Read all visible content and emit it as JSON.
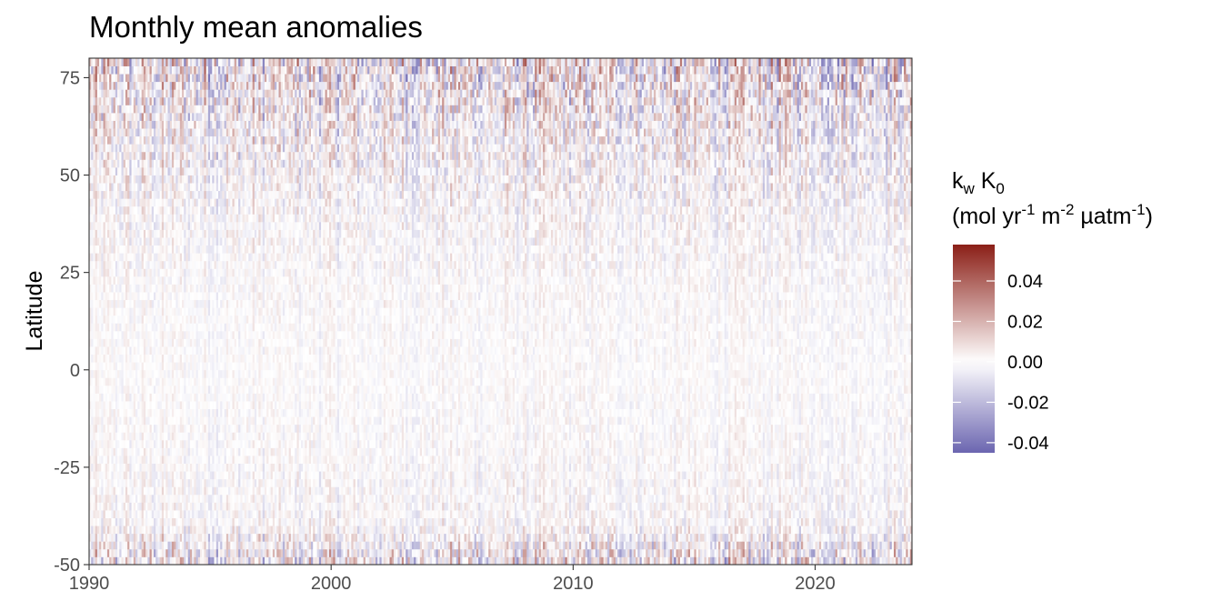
{
  "chart_data": {
    "type": "heatmap",
    "title": "Monthly mean anomalies",
    "xlabel": "",
    "ylabel": "Latitude",
    "x_range": [
      1990,
      2024
    ],
    "y_range": [
      -50,
      80
    ],
    "x_ticks": [
      1990,
      2000,
      2010,
      2020
    ],
    "x_tick_labels": [
      "1990",
      "2000",
      "2010",
      "2020"
    ],
    "y_ticks": [
      -50,
      -25,
      0,
      25,
      50,
      75
    ],
    "y_tick_labels": [
      "-50",
      "-25",
      "0",
      "25",
      "50",
      "75"
    ],
    "grid": false,
    "legend": {
      "placement": "right",
      "title_line1": {
        "base": "k",
        "sub1": "w",
        "mid": " K",
        "sub2": "0"
      },
      "title_line2": {
        "p1": "(mol yr",
        "sup1": "-1",
        "p2": " m",
        "sup2": "-2",
        "p3": " µatm",
        "sup3": "-1",
        "p4": ")"
      },
      "range": [
        -0.045,
        0.058
      ],
      "ticks": [
        -0.04,
        -0.02,
        0.0,
        0.02,
        0.04
      ],
      "tick_labels": [
        "-0.04",
        "-0.02",
        "0.00",
        "0.02",
        "0.04"
      ]
    },
    "colors": {
      "low": "#6b65b0",
      "mid": "#ffffff",
      "high": "#8b1f17"
    },
    "anomaly_amplitude_by_latitude": [
      {
        "lat": -50,
        "amp": 0.035
      },
      {
        "lat": -46,
        "amp": 0.028
      },
      {
        "lat": -40,
        "amp": 0.012
      },
      {
        "lat": -20,
        "amp": 0.008
      },
      {
        "lat": 0,
        "amp": 0.006
      },
      {
        "lat": 20,
        "amp": 0.008
      },
      {
        "lat": 40,
        "amp": 0.013
      },
      {
        "lat": 60,
        "amp": 0.024
      },
      {
        "lat": 80,
        "amp": 0.04
      }
    ]
  }
}
